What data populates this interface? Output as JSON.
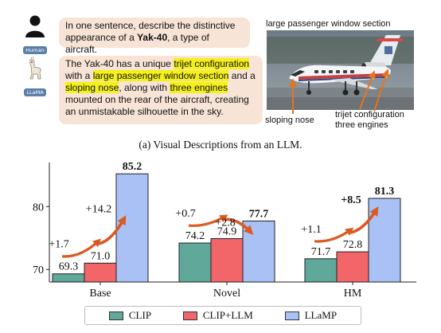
{
  "top_panel": {
    "human_tag": "Human",
    "llm_tag": "LLaMA",
    "question": {
      "pre": "In one sentence, describe the distinctive appearance of a ",
      "bold": "Yak-40",
      "post": ", a type of aircraft."
    },
    "answer": {
      "t1": "The Yak-40 has a unique ",
      "h1": "trijet configuration",
      "t2": " with a ",
      "h2": "large passenger window section",
      "t3": " and a ",
      "h3": "sloping nose",
      "t4": ", along with ",
      "h4": "three engines",
      "t5": " mounted on the rear of the aircraft, creating an unmistakable silhouette in the sky."
    },
    "photo_labels": {
      "window": "large passenger window section",
      "nose": "sloping nose",
      "trijet": "trijet configuration",
      "engines": "three engines"
    },
    "caption": "(a) Visual Descriptions from an LLM."
  },
  "chart_data": {
    "type": "bar",
    "categories": [
      "Base",
      "Novel",
      "HM"
    ],
    "series": [
      {
        "name": "CLIP",
        "values": [
          69.3,
          74.2,
          71.7
        ],
        "color": "#5fa89a"
      },
      {
        "name": "CLIP+LLM",
        "values": [
          71.0,
          74.9,
          72.8
        ],
        "color": "#f2666a"
      },
      {
        "name": "LLaMP",
        "values": [
          85.2,
          77.7,
          81.3
        ],
        "color": "#a9c1f4"
      }
    ],
    "yticks": [
      70,
      80
    ],
    "ylim": [
      68,
      87
    ],
    "gains_over_clip": [
      "+1.7",
      "+0.7",
      "+1.1"
    ],
    "gains_over_clip_llm": [
      "+14.2",
      "+2.8",
      "+8.5"
    ],
    "arrow_color": "#d95a22",
    "legend_position": "bottom"
  }
}
